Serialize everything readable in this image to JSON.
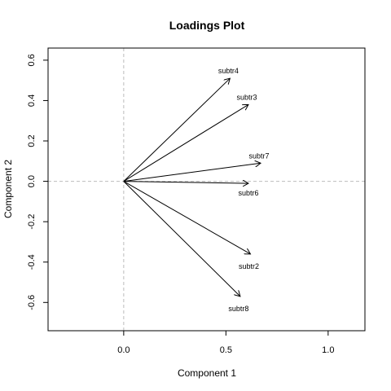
{
  "chart_data": {
    "type": "scatter",
    "title": "Loadings Plot",
    "xlabel": "Component 1",
    "ylabel": "Component 2",
    "xlim": [
      -0.37,
      1.18
    ],
    "ylim": [
      -0.74,
      0.66
    ],
    "xticks": [
      {
        "value": 0.0,
        "label": "0.0"
      },
      {
        "value": 0.5,
        "label": "0.5"
      },
      {
        "value": 1.0,
        "label": "1.0"
      }
    ],
    "yticks": [
      {
        "value": -0.6,
        "label": "-0.6"
      },
      {
        "value": -0.4,
        "label": "-0.4"
      },
      {
        "value": -0.2,
        "label": "-0.2"
      },
      {
        "value": 0.0,
        "label": "0.0"
      },
      {
        "value": 0.2,
        "label": "0.2"
      },
      {
        "value": 0.4,
        "label": "0.4"
      },
      {
        "value": 0.6,
        "label": "0.6"
      }
    ],
    "grid": false,
    "reference_lines": {
      "x": 0,
      "y": 0
    },
    "vectors": [
      {
        "name": "subtr4",
        "x": 0.52,
        "y": 0.51
      },
      {
        "name": "subtr3",
        "x": 0.61,
        "y": 0.38
      },
      {
        "name": "subtr7",
        "x": 0.67,
        "y": 0.09
      },
      {
        "name": "subtr6",
        "x": 0.61,
        "y": -0.01
      },
      {
        "name": "subtr2",
        "x": 0.62,
        "y": -0.36
      },
      {
        "name": "subtr8",
        "x": 0.57,
        "y": -0.57
      }
    ]
  }
}
